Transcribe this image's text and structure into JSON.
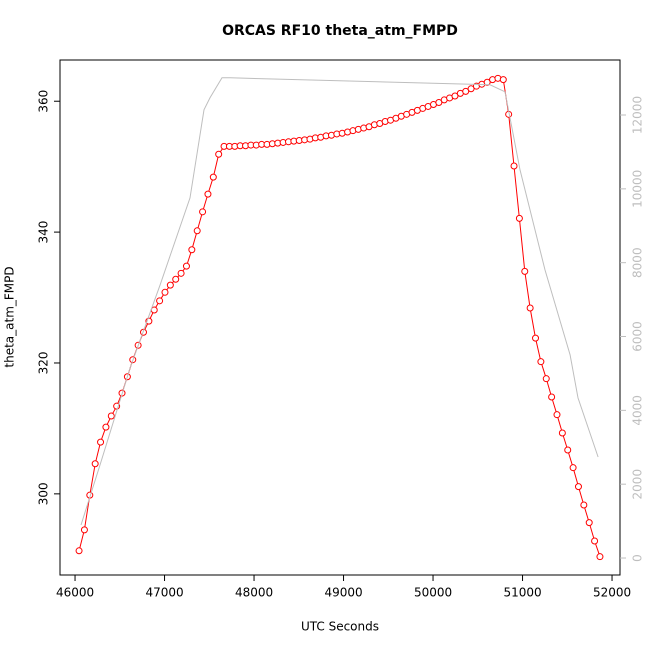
{
  "chart_data": {
    "type": "line",
    "title": "ORCAS RF10 theta_atm_FMPD",
    "xlabel": "UTC Seconds",
    "ylabel": "theta_atm_FMPD",
    "xlim": [
      45832,
      52089
    ],
    "ylim": [
      287.6,
      366.3
    ],
    "y2lim": [
      -460,
      13490
    ],
    "xticks": [
      46000,
      47000,
      48000,
      49000,
      50000,
      51000,
      52000
    ],
    "yticks": [
      300,
      320,
      340,
      360
    ],
    "y2ticks": [
      0,
      2000,
      4000,
      6000,
      8000,
      10000,
      12000
    ],
    "series": [
      {
        "color": "#ff0000",
        "markers": true,
        "axis": "y",
        "x": [
          46045,
          46105,
          46165,
          46225,
          46285,
          46345,
          46405,
          46465,
          46525,
          46585,
          46645,
          46705,
          46765,
          46825,
          46885,
          46945,
          47005,
          47065,
          47125,
          47185,
          47245,
          47305,
          47365,
          47425,
          47485,
          47545,
          47605,
          47665,
          47725,
          47785,
          47845,
          47905,
          47965,
          48025,
          48085,
          48145,
          48205,
          48265,
          48325,
          48385,
          48445,
          48505,
          48565,
          48625,
          48685,
          48745,
          48805,
          48865,
          48925,
          48985,
          49045,
          49105,
          49165,
          49225,
          49285,
          49345,
          49405,
          49465,
          49525,
          49585,
          49645,
          49705,
          49765,
          49825,
          49885,
          49945,
          50005,
          50065,
          50125,
          50185,
          50245,
          50305,
          50365,
          50425,
          50485,
          50545,
          50605,
          50665,
          50725,
          50785,
          50845,
          50905,
          50965,
          51025,
          51085,
          51145,
          51205,
          51265,
          51325,
          51385,
          51445,
          51505,
          51565,
          51625,
          51685,
          51745,
          51805,
          51865
        ],
        "values": [
          291.3,
          294.5,
          299.8,
          304.6,
          307.9,
          310.2,
          311.9,
          313.4,
          315.4,
          317.9,
          320.5,
          322.7,
          324.7,
          326.4,
          328.1,
          329.5,
          330.8,
          331.9,
          332.8,
          333.7,
          334.8,
          337.3,
          340.2,
          343.1,
          345.8,
          348.4,
          351.9,
          353.1,
          353.1,
          353.1,
          353.2,
          353.2,
          353.3,
          353.3,
          353.4,
          353.4,
          353.5,
          353.6,
          353.7,
          353.8,
          353.9,
          354.0,
          354.1,
          354.2,
          354.4,
          354.5,
          354.7,
          354.8,
          355.0,
          355.1,
          355.3,
          355.5,
          355.7,
          355.9,
          356.1,
          356.4,
          356.6,
          356.9,
          357.1,
          357.4,
          357.7,
          358.0,
          358.3,
          358.6,
          358.9,
          359.2,
          359.5,
          359.8,
          360.2,
          360.5,
          360.8,
          361.2,
          361.5,
          361.9,
          362.3,
          362.6,
          362.9,
          363.3,
          363.5,
          363.3,
          358.0,
          350.1,
          342.1,
          334.0,
          328.4,
          323.8,
          320.2,
          317.6,
          314.8,
          312.1,
          309.3,
          306.7,
          304.0,
          301.1,
          298.3,
          295.6,
          292.8,
          290.4
        ]
      },
      {
        "color": "#bebebe",
        "markers": false,
        "axis": "y2",
        "x": [
          46067,
          46279,
          46615,
          46950,
          47285,
          47441,
          47508,
          47642,
          47732,
          50637,
          50804,
          50972,
          51251,
          51531,
          51620,
          51844
        ],
        "values": [
          894,
          2520,
          5149,
          7398,
          9756,
          12141,
          12466,
          13008,
          13008,
          12818,
          12629,
          10515,
          7805,
          5501,
          4336,
          2737
        ]
      }
    ]
  }
}
